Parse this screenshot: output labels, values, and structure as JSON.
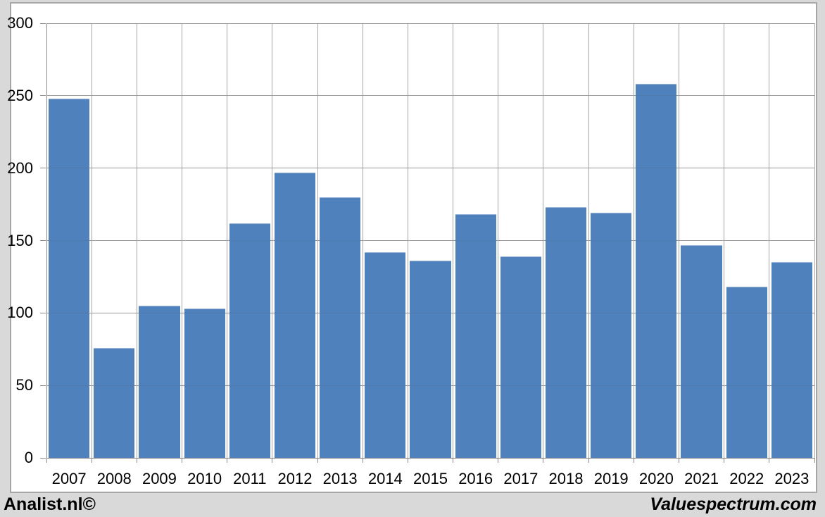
{
  "footer": {
    "left_text": "Analist.nl©",
    "right_text": "Valuespectrum.com"
  },
  "chart_data": {
    "type": "bar",
    "title": "",
    "categories": [
      "2007",
      "2008",
      "2009",
      "2010",
      "2011",
      "2012",
      "2013",
      "2014",
      "2015",
      "2016",
      "2017",
      "2018",
      "2019",
      "2020",
      "2021",
      "2022",
      "2023"
    ],
    "values": [
      248,
      76,
      105,
      103,
      162,
      197,
      180,
      142,
      136,
      168,
      139,
      173,
      169,
      258,
      147,
      118,
      135
    ],
    "xlabel": "",
    "ylabel": "",
    "ylim": [
      0,
      300
    ],
    "yticks": [
      0,
      50,
      100,
      150,
      200,
      250,
      300
    ],
    "grid": true,
    "legend": "none",
    "bar_color": "#4f81bd",
    "bar_top_edge_color": "#9fb8d8",
    "gridline_color": "#a6a6a6",
    "gridline_over_bar_color": "rgba(96,104,118,0.22)",
    "axis_color": "#8a8a8a",
    "label_color": "#000000",
    "plot_bg": "#ffffff",
    "page_bg": "#d9d9d9",
    "frame_border_color": "#a6a6a6"
  }
}
